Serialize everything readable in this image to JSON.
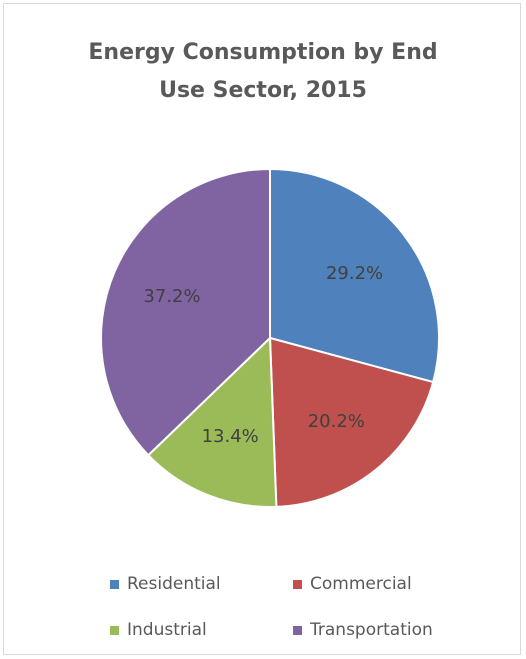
{
  "chart_data": {
    "type": "pie",
    "title": "Energy Consumption by End Use Sector, 2015",
    "title_lines": [
      "Energy Consumption by End",
      "Use Sector, 2015"
    ],
    "categories": [
      "Residential",
      "Commercial",
      "Industrial",
      "Transportation"
    ],
    "values": [
      29.2,
      20.2,
      13.4,
      37.2
    ],
    "data_labels": [
      "29.2%",
      "20.2%",
      "13.4%",
      "37.2%"
    ],
    "colors": [
      "#4f81bd",
      "#c0504d",
      "#9bbb59",
      "#8064a2"
    ],
    "start_angle": "12 o'clock",
    "direction": "clockwise",
    "legend_position": "bottom"
  }
}
